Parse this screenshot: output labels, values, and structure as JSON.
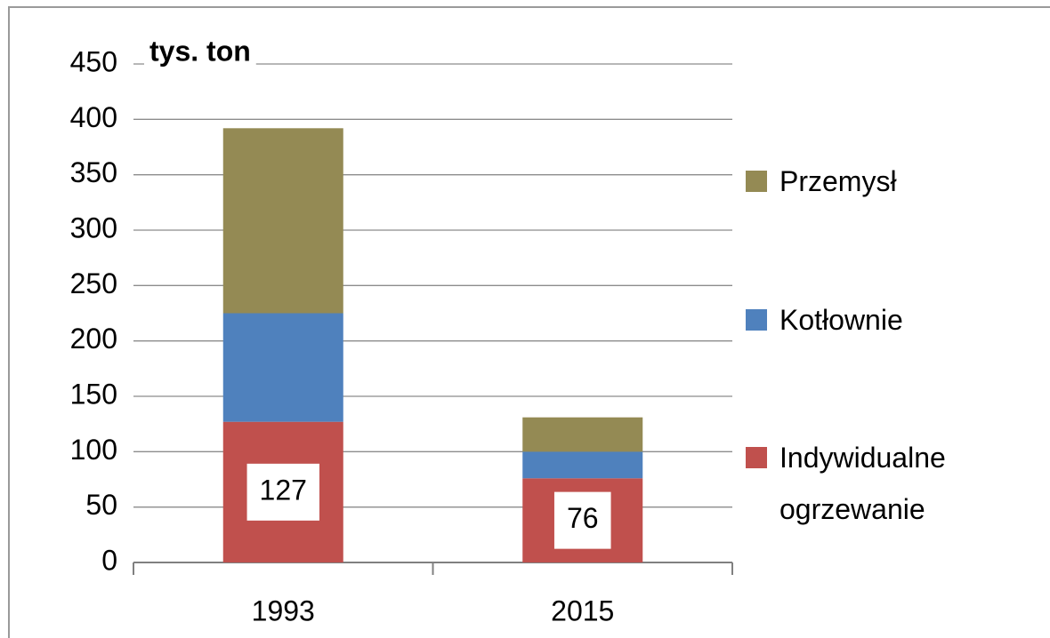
{
  "chart_data": {
    "type": "stacked_bar",
    "y_label": "tys. ton",
    "categories": [
      "1993",
      "2015"
    ],
    "series": [
      {
        "name": "Indywidualne ogrzewanie",
        "color": "#c0504d",
        "values": [
          127,
          76
        ],
        "data_labels": true
      },
      {
        "name": "Kotłownie",
        "color": "#4f81bd",
        "values": [
          98,
          24
        ]
      },
      {
        "name": "Przemysł",
        "color": "#948a54",
        "values": [
          167,
          31
        ]
      }
    ],
    "ylim": [
      0,
      450
    ],
    "yticks": [
      0,
      50,
      100,
      150,
      200,
      250,
      300,
      350,
      400,
      450
    ],
    "grid": true,
    "legend": "right"
  }
}
